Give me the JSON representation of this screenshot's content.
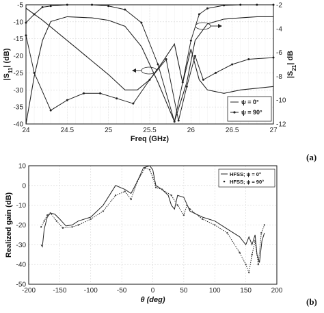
{
  "chart_data": [
    {
      "type": "line",
      "panel_label": "(a)",
      "xlabel": "Freq (GHz)",
      "ylabel_left": "|S11| (dB)",
      "ylabel_right": "|S21| dB",
      "xlim": [
        24,
        27
      ],
      "ylim_left": [
        -40,
        -5
      ],
      "ylim_right": [
        -12,
        -2
      ],
      "xticks": [
        "24",
        "24.5",
        "25",
        "25.5",
        "26",
        "26.5",
        "27"
      ],
      "yticks_left": [
        "-5",
        "-10",
        "-15",
        "-20",
        "-25",
        "-30",
        "-35",
        "-40"
      ],
      "yticks_right": [
        "-2",
        "-4",
        "-6",
        "-8",
        "-10",
        "-12"
      ],
      "grid": true,
      "legend_position": "bottom-right",
      "series": [
        {
          "name": "ψ = 0°",
          "quantity": "S11",
          "axis": "left",
          "style": "solid",
          "x": [
            24.0,
            24.2,
            24.4,
            24.6,
            24.8,
            25.0,
            25.2,
            25.35,
            25.5,
            25.65,
            25.8,
            25.9,
            26.0,
            26.1,
            26.2,
            26.4,
            26.6,
            26.8,
            27.0
          ],
          "y": [
            -6,
            -9.5,
            -13.5,
            -17.5,
            -21.5,
            -25.5,
            -30,
            -30,
            -27,
            -22,
            -16.5,
            -28,
            -18,
            -27,
            -30,
            -31,
            -30,
            -29.5,
            -29
          ]
        },
        {
          "name": "ψ = 90°",
          "quantity": "S11",
          "axis": "left",
          "style": "dotted-markers",
          "x": [
            24.0,
            24.1,
            24.3,
            24.5,
            24.7,
            24.9,
            25.1,
            25.3,
            25.5,
            25.7,
            25.85,
            25.95,
            26.05,
            26.15,
            26.3,
            26.5,
            26.7,
            27.0
          ],
          "y": [
            -14,
            -25,
            -36,
            -33,
            -31,
            -31,
            -32.5,
            -34,
            -27,
            -21,
            -39,
            -29,
            -20,
            -27,
            -25,
            -22.5,
            -21,
            -20.5
          ]
        },
        {
          "name": "ψ = 0°",
          "quantity": "S21",
          "axis": "right",
          "style": "solid",
          "x": [
            24.0,
            24.1,
            24.2,
            24.3,
            24.5,
            24.8,
            25.0,
            25.2,
            25.4,
            25.6,
            25.8,
            25.95,
            26.05,
            26.2,
            26.4,
            26.6,
            26.8,
            27.0
          ],
          "y": [
            -12,
            -8,
            -5,
            -3.4,
            -3,
            -3.1,
            -3.3,
            -3.8,
            -5.5,
            -8.5,
            -11.8,
            -8.5,
            -5,
            -3.6,
            -3.2,
            -3.1,
            -3,
            -3
          ]
        },
        {
          "name": "ψ = 90°",
          "quantity": "S21",
          "axis": "right",
          "style": "dotted-markers",
          "x": [
            24.0,
            24.1,
            24.2,
            24.3,
            24.5,
            24.8,
            25.0,
            25.2,
            25.4,
            25.6,
            25.8,
            25.9,
            26.0,
            26.1,
            26.2,
            26.4,
            26.6,
            26.8,
            27.0
          ],
          "y": [
            -3.5,
            -2.8,
            -2.2,
            -2.1,
            -2.0,
            -2.0,
            -2.1,
            -2.4,
            -3.5,
            -7,
            -11.8,
            -8.5,
            -5,
            -2.8,
            -2.3,
            -2.05,
            -2.0,
            -2.0,
            -2.0
          ]
        }
      ]
    },
    {
      "type": "line",
      "panel_label": "(b)",
      "xlabel": "θ (deg)",
      "ylabel": "Realized gain (dB)",
      "xlim": [
        -200,
        200
      ],
      "ylim": [
        -50,
        10
      ],
      "xticks": [
        "-200",
        "-150",
        "-100",
        "-50",
        "0",
        "50",
        "100",
        "150",
        "200"
      ],
      "yticks": [
        "10",
        "0",
        "-10",
        "-20",
        "-30",
        "-40",
        "-50"
      ],
      "grid": true,
      "legend_position": "top-right",
      "series": [
        {
          "name": "HFSS; ψ = 0°",
          "style": "solid",
          "x": [
            -180,
            -178,
            -175,
            -170,
            -165,
            -158,
            -150,
            -140,
            -130,
            -120,
            -100,
            -80,
            -60,
            -45,
            -35,
            -25,
            -15,
            -5,
            0,
            5,
            15,
            25,
            30,
            35,
            40,
            50,
            60,
            80,
            100,
            120,
            140,
            150,
            155,
            160,
            165,
            168,
            172,
            176,
            180
          ],
          "y": [
            -30,
            -31,
            -22,
            -16,
            -14,
            -14.5,
            -17,
            -20.5,
            -20,
            -18,
            -16,
            -10,
            0,
            -2,
            -4,
            2,
            9,
            10,
            8,
            0,
            -2,
            -5,
            -10,
            -12,
            -5,
            -6,
            -13,
            -16,
            -18,
            -22,
            -26,
            -30,
            -26,
            -30,
            -25,
            -35,
            -39,
            -28,
            -24
          ]
        },
        {
          "name": "HFSS; ψ = 90°",
          "style": "dotted-markers",
          "x": [
            -180,
            -175,
            -170,
            -165,
            -155,
            -145,
            -130,
            -120,
            -100,
            -80,
            -60,
            -45,
            -35,
            -25,
            -12,
            -5,
            0,
            5,
            15,
            30,
            40,
            50,
            55,
            60,
            80,
            100,
            120,
            140,
            150,
            155,
            160,
            165,
            170,
            175,
            180
          ],
          "y": [
            -21,
            -18,
            -15,
            -14,
            -18,
            -21.5,
            -21,
            -20,
            -17,
            -13,
            -5,
            -3,
            -7,
            2,
            9,
            8,
            4,
            -1,
            -2,
            -5,
            -10,
            -15,
            -10,
            -12,
            -17,
            -20,
            -24,
            -34,
            -40,
            -44,
            -35,
            -28,
            -40,
            -24,
            -20
          ]
        }
      ]
    }
  ]
}
